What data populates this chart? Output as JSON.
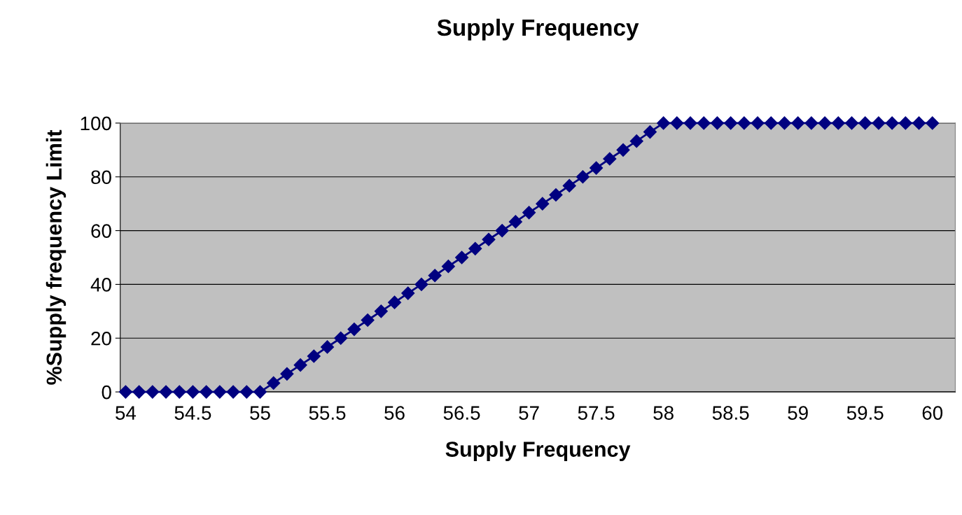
{
  "chart_data": {
    "type": "line",
    "title": "Supply Frequency",
    "xlabel": "Supply Frequency",
    "ylabel": "%Supply frequency Limit",
    "x": [
      54.0,
      54.1,
      54.2,
      54.3,
      54.4,
      54.5,
      54.6,
      54.7,
      54.8,
      54.9,
      55.0,
      55.1,
      55.2,
      55.3,
      55.4,
      55.5,
      55.6,
      55.7,
      55.8,
      55.9,
      56.0,
      56.1,
      56.2,
      56.3,
      56.4,
      56.5,
      56.6,
      56.7,
      56.8,
      56.9,
      57.0,
      57.1,
      57.2,
      57.3,
      57.4,
      57.5,
      57.6,
      57.7,
      57.8,
      57.9,
      58.0,
      58.1,
      58.2,
      58.3,
      58.4,
      58.5,
      58.6,
      58.7,
      58.8,
      58.9,
      59.0,
      59.1,
      59.2,
      59.3,
      59.4,
      59.5,
      59.6,
      59.7,
      59.8,
      59.9,
      60.0
    ],
    "series": [
      {
        "color": "#000080",
        "values": [
          0,
          0,
          0,
          0,
          0,
          0,
          0,
          0,
          0,
          0,
          0,
          3.3,
          6.7,
          10,
          13.3,
          16.7,
          20,
          23.3,
          26.7,
          30,
          33.3,
          36.7,
          40,
          43.3,
          46.7,
          50,
          53.3,
          56.7,
          60,
          63.3,
          66.7,
          70,
          73.3,
          76.7,
          80,
          83.3,
          86.7,
          90,
          93.3,
          96.7,
          100,
          100,
          100,
          100,
          100,
          100,
          100,
          100,
          100,
          100,
          100,
          100,
          100,
          100,
          100,
          100,
          100,
          100,
          100,
          100,
          100
        ]
      }
    ],
    "xlim": [
      53.96,
      60.17
    ],
    "xticks": [
      54,
      54.5,
      55,
      55.5,
      56,
      56.5,
      57,
      57.5,
      58,
      58.5,
      59,
      59.5,
      60
    ],
    "ylim": [
      0,
      100
    ],
    "yticks": [
      0,
      20,
      40,
      60,
      80,
      100
    ],
    "grid": "y",
    "marker": "diamond",
    "line_style": "solid"
  }
}
